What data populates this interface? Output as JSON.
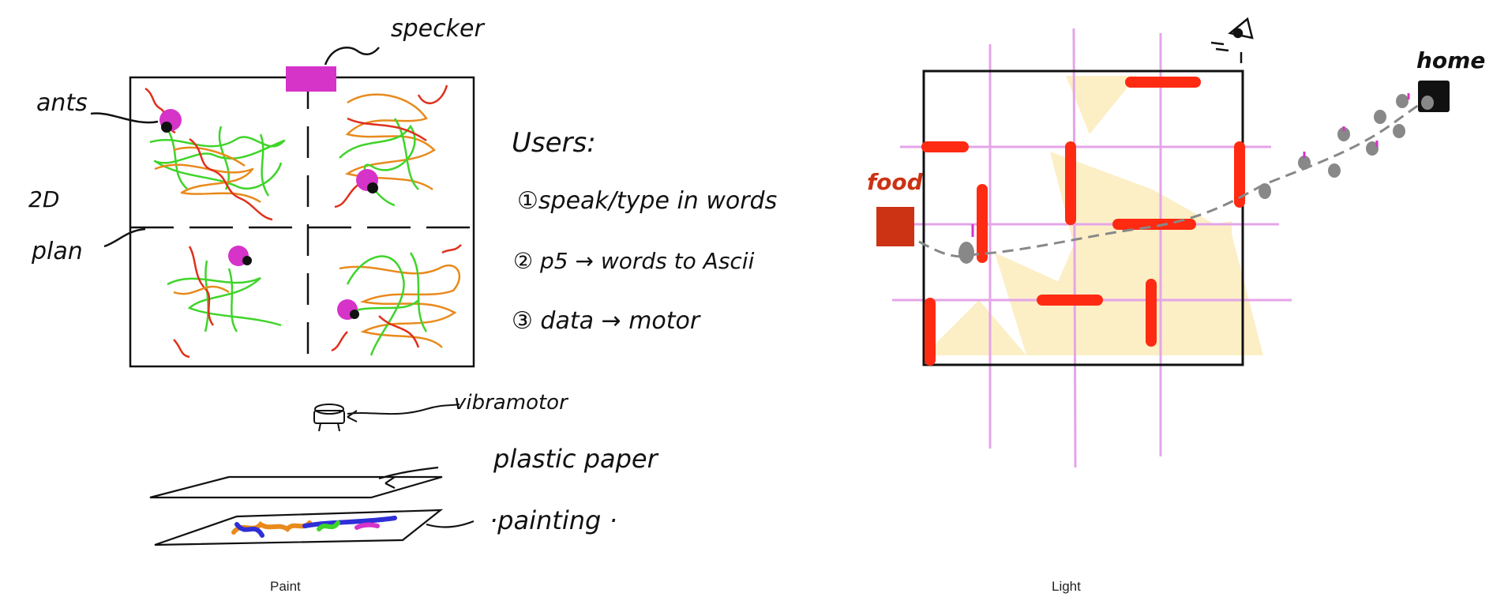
{
  "paint_panel": {
    "labels": {
      "speaker": "specker",
      "ants": "ants",
      "plan_2d_line1": "2D",
      "plan_2d_line2": "plan",
      "users_title": "Users:",
      "step1": "①speak/type in words",
      "step2": "② p5 → words to Ascii",
      "step3": "③ data → motor",
      "vibramotor": "vibramotor",
      "plastic_paper": "plastic paper",
      "painting": "·painting ·"
    },
    "colors": {
      "ant": "#d633c9",
      "scribble_green": "#3fd42a",
      "scribble_orange": "#e88a1c",
      "scribble_red": "#e0301c",
      "painting_blue": "#2f2fd8"
    },
    "caption": "Paint"
  },
  "light_panel": {
    "labels": {
      "food": "food",
      "home": "home"
    },
    "colors": {
      "wall": "#ff2a12",
      "grid": "#e4a5e8",
      "light_beam": "#fbe7a8",
      "food_box": "#cc3214",
      "home_box": "#111111",
      "ant_path": "#888888"
    },
    "caption": "Light"
  }
}
